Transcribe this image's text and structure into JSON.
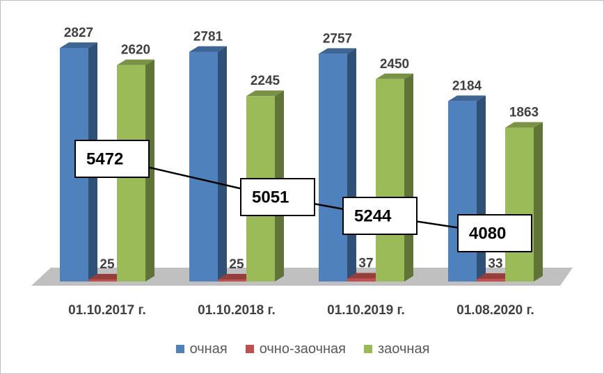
{
  "chart_data": {
    "type": "bar",
    "title": "",
    "xlabel": "",
    "ylabel": "",
    "ylim": [
      0,
      3000
    ],
    "grid": false,
    "legend_position": "bottom",
    "categories": [
      "01.10.2017 г.",
      "01.10.2018 г.",
      "01.10.2019 г.",
      "01.08.2020 г."
    ],
    "series": [
      {
        "name": "очная",
        "values": [
          2827,
          2781,
          2757,
          2184
        ],
        "color": "#4F81BD"
      },
      {
        "name": "очно-заочная",
        "values": [
          25,
          25,
          37,
          33
        ],
        "color": "#C0504D"
      },
      {
        "name": "заочная",
        "values": [
          2620,
          2245,
          2450,
          1863
        ],
        "color": "#9BBB59"
      }
    ],
    "totals": {
      "type": "line",
      "values": [
        5472,
        5051,
        5244,
        4080
      ],
      "color": "#000000"
    }
  }
}
